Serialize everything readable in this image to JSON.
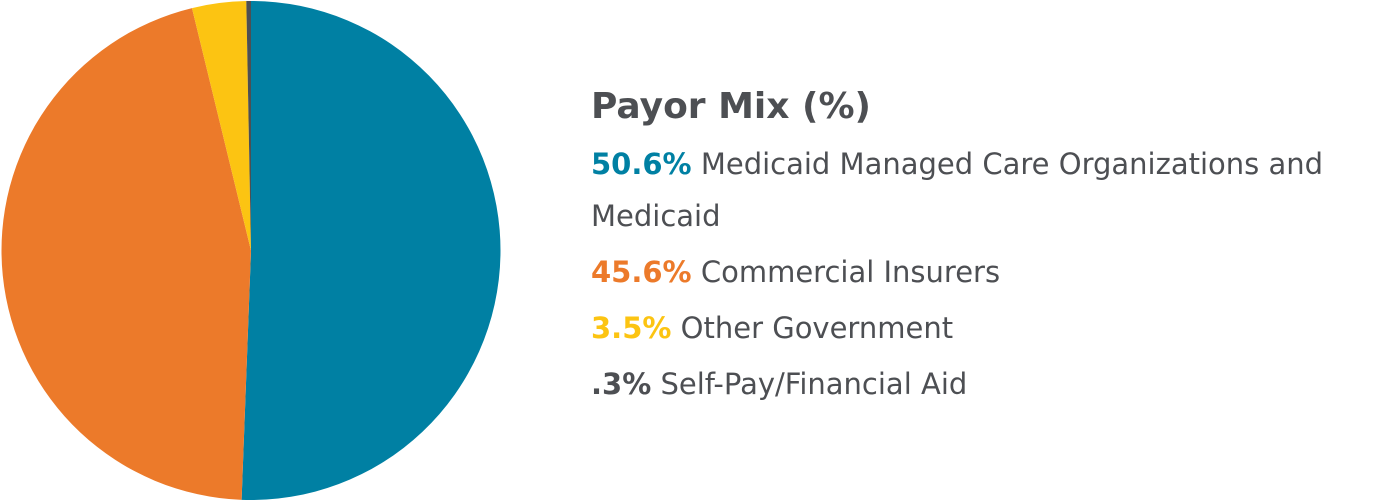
{
  "chart_data": {
    "type": "pie",
    "title": "Payor Mix (%)",
    "slices": [
      {
        "label": "Medicaid Managed Care Organizations and Medicaid",
        "value": 50.6,
        "display": "50.6%",
        "color": "#0080a3"
      },
      {
        "label": "Commercial Insurers",
        "value": 45.6,
        "display": "45.6%",
        "color": "#ec7a2a"
      },
      {
        "label": "Other Government",
        "value": 3.5,
        "display": "3.5%",
        "color": "#fcc412"
      },
      {
        "label": "Self-Pay/Financial Aid",
        "value": 0.3,
        "display": ".3%",
        "color": "#4d4f53"
      }
    ],
    "legend_position": "right"
  },
  "text_color": "#4d4f53"
}
